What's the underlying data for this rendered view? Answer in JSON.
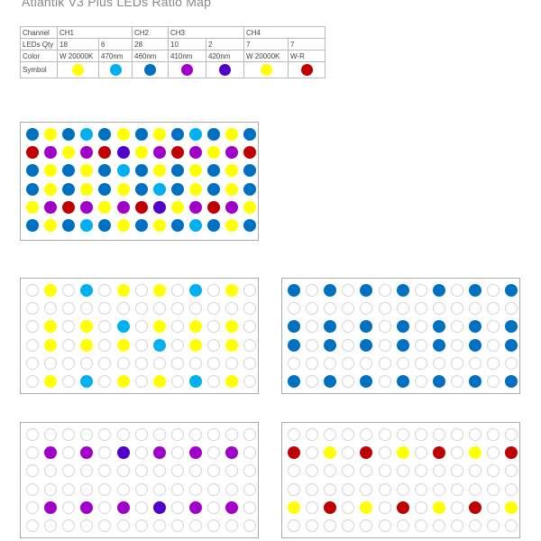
{
  "title": "Atlantik V3 Plus LEDs Ratio Map",
  "table": {
    "row_labels": [
      "Channel",
      "LEDs Qty",
      "Color",
      "Symbol"
    ],
    "channels": [
      {
        "label": "CH1",
        "span": 2
      },
      {
        "label": "CH2",
        "span": 1
      },
      {
        "label": "CH3",
        "span": 2
      },
      {
        "label": "CH4",
        "span": 2
      }
    ],
    "leds": [
      {
        "qty": "18",
        "color": "W 20000K",
        "symbol": "Y"
      },
      {
        "qty": "6",
        "color": "470nm",
        "symbol": "C"
      },
      {
        "qty": "28",
        "color": "460nm",
        "symbol": "B"
      },
      {
        "qty": "10",
        "color": "410nm",
        "symbol": "P"
      },
      {
        "qty": "2",
        "color": "420nm",
        "symbol": "V"
      },
      {
        "qty": "7",
        "color": "W 20000K",
        "symbol": "Y"
      },
      {
        "qty": "7",
        "color": "W-R",
        "symbol": "R"
      }
    ]
  },
  "colors": {
    "Y": "#ffff00",
    "C": "#00b0f0",
    "B": "#0070c0",
    "P": "#a000c8",
    "V": "#5000c8",
    "R": "#c00000"
  },
  "maps": {
    "all": [
      "BYBCBYBYBCBYB",
      "RPYPRVYPRPYPR",
      "BYBYBCBYBYBYB",
      "BYBYBYBCBYBYB",
      "YPRPYPRVYPRPY",
      "BYBCBYBYBCBYB"
    ],
    "ch1": [
      ".Y.C.Y.Y.C.Y.",
      ".............",
      ".Y.Y.C.Y.Y.Y.",
      ".Y.Y.Y.C.Y.Y.",
      ".............",
      ".Y.C.Y.Y.C.Y."
    ],
    "ch2": [
      "B.B.B.B.B.B.B",
      ".............",
      "B.B.B.B.B.B.B",
      "B.B.B.B.B.B.B",
      ".............",
      "B.B.B.B.B.B.B"
    ],
    "ch3": [
      ".............",
      ".P.P.V.P.P.P.",
      ".............",
      ".............",
      ".P.P.P.V.P.P.",
      "............."
    ],
    "ch4": [
      ".............",
      "R.Y.R.Y.R.Y.R",
      ".............",
      ".............",
      "Y.R.Y.R.Y.R.Y",
      "............."
    ]
  }
}
